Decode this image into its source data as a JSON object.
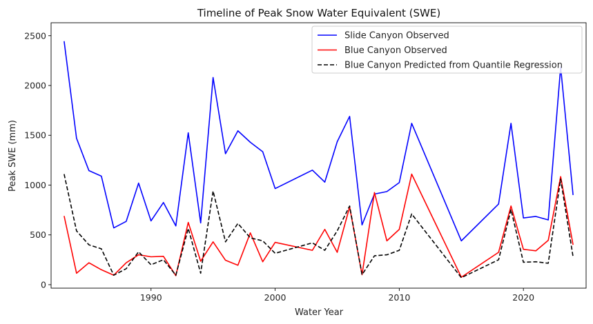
{
  "chart_data": {
    "type": "line",
    "title": "Timeline of Peak Snow Water Equivalent (SWE)",
    "xlabel": "Water Year",
    "ylabel": "Peak SWE (mm)",
    "xlim": [
      1981.95,
      2025.05
    ],
    "ylim": [
      -35,
      2630
    ],
    "xticks": [
      1990,
      2000,
      2010,
      2020
    ],
    "yticks": [
      0,
      500,
      1000,
      1500,
      2000,
      2500
    ],
    "legend_position": "top-right",
    "x": [
      1983,
      1984,
      1985,
      1986,
      1987,
      1988,
      1989,
      1990,
      1991,
      1992,
      1993,
      1994,
      1995,
      1996,
      1997,
      1998,
      1999,
      2000,
      2003,
      2004,
      2005,
      2006,
      2007,
      2008,
      2009,
      2010,
      2011,
      2015,
      2018,
      2019,
      2020,
      2021,
      2022,
      2023,
      2024
    ],
    "series": [
      {
        "name": "Slide Canyon Observed",
        "color": "#0000ff",
        "style": "solid",
        "values": [
          2445,
          1470,
          1145,
          1090,
          570,
          635,
          1020,
          640,
          825,
          590,
          1525,
          620,
          2080,
          1315,
          1545,
          1430,
          1335,
          965,
          1150,
          1030,
          1435,
          1690,
          600,
          910,
          935,
          1025,
          1620,
          440,
          810,
          1620,
          670,
          685,
          650,
          2185,
          900
        ]
      },
      {
        "name": "Blue Canyon Observed",
        "color": "#ff0000",
        "style": "solid",
        "values": [
          690,
          115,
          220,
          150,
          95,
          220,
          300,
          280,
          285,
          90,
          625,
          235,
          430,
          245,
          195,
          520,
          230,
          425,
          345,
          555,
          325,
          780,
          100,
          925,
          440,
          555,
          1110,
          75,
          325,
          790,
          355,
          340,
          445,
          1085,
          400
        ]
      },
      {
        "name": "Blue Canyon Predicted from Quantile Regression",
        "color": "#000000",
        "style": "dashed",
        "values": [
          1110,
          540,
          400,
          360,
          95,
          160,
          330,
          200,
          250,
          95,
          565,
          115,
          940,
          430,
          615,
          470,
          440,
          315,
          420,
          345,
          540,
          790,
          100,
          290,
          300,
          345,
          710,
          70,
          250,
          755,
          225,
          230,
          215,
          1060,
          280
        ]
      }
    ]
  }
}
